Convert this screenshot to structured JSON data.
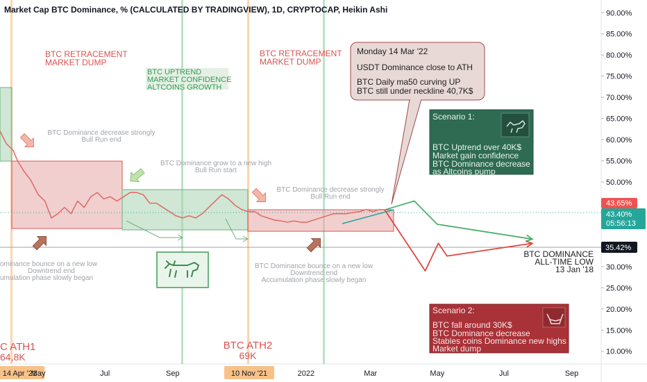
{
  "header": {
    "title": "Market Cap BTC Dominance, % (CALCULATED BY TRADINGVIEW), 1D, CRYPTOCAP, Heikin Ashi"
  },
  "colors": {
    "candle_up": "#26a69a",
    "candle_down": "#ef5350",
    "box_red_fill": "#e8a8a8",
    "box_green_fill": "#a8d4b0",
    "vline_orange": "#f5b26b",
    "vline_green": "#8fd19e",
    "scenario1_bg": "#2e6b52",
    "scenario2_bg": "#a83238",
    "red_text": "#d9534f",
    "green_text": "#2e9e4f"
  },
  "price_scale": {
    "current_price_label": "43.65%",
    "current_value_label": "43.40%",
    "countdown_label": "05:56:13",
    "ath_low_label": "35.42%"
  },
  "chart_data": {
    "type": "line",
    "title": "Market Cap BTC Dominance, % (CALCULATED BY TRADINGVIEW), 1D, CRYPTOCAP, Heikin Ashi",
    "ylim": [
      7,
      93
    ],
    "y_ticks": [
      "90.00%",
      "85.00%",
      "80.00%",
      "75.00%",
      "70.00%",
      "65.00%",
      "60.00%",
      "55.00%",
      "50.00%",
      "45.00%",
      "40.00%",
      "35.00%",
      "30.00%",
      "25.00%",
      "20.00%",
      "15.00%",
      "10.00%"
    ],
    "y_tick_values": [
      90,
      85,
      80,
      75,
      70,
      65,
      60,
      55,
      50,
      45,
      40,
      35,
      30,
      25,
      20,
      15,
      10
    ],
    "x_ticks": [
      {
        "label": "14 Apr '21",
        "date": "2021-04-14",
        "highlight": true
      },
      {
        "label": "May",
        "date": "2021-05-01",
        "highlight": false
      },
      {
        "label": "Jul",
        "date": "2021-07-01",
        "highlight": false
      },
      {
        "label": "Sep",
        "date": "2021-09-01",
        "highlight": false
      },
      {
        "label": "10 Nov '21",
        "date": "2021-11-10",
        "highlight": true
      },
      {
        "label": "2022",
        "date": "2022-01-01",
        "highlight": false
      },
      {
        "label": "Mar",
        "date": "2022-03-01",
        "highlight": false
      },
      {
        "label": "May",
        "date": "2022-05-01",
        "highlight": false
      },
      {
        "label": "Jul",
        "date": "2022-07-01",
        "highlight": false
      },
      {
        "label": "Sep",
        "date": "2022-09-01",
        "highlight": false
      }
    ],
    "series": [
      {
        "values": [
          [
            "2021-03-27",
            62.0
          ],
          [
            "2021-04-02",
            59.0
          ],
          [
            "2021-04-08",
            57.5
          ],
          [
            "2021-04-12",
            55.0
          ],
          [
            "2021-04-18",
            52.5
          ],
          [
            "2021-04-24",
            50.5
          ],
          [
            "2021-05-01",
            47.0
          ],
          [
            "2021-05-07",
            45.5
          ],
          [
            "2021-05-13",
            41.5
          ],
          [
            "2021-05-19",
            42.5
          ],
          [
            "2021-05-25",
            44.0
          ],
          [
            "2021-05-31",
            42.5
          ],
          [
            "2021-06-06",
            45.5
          ],
          [
            "2021-06-12",
            44.0
          ],
          [
            "2021-06-18",
            46.5
          ],
          [
            "2021-06-24",
            47.5
          ],
          [
            "2021-06-30",
            46.0
          ],
          [
            "2021-07-06",
            46.5
          ],
          [
            "2021-07-12",
            45.5
          ],
          [
            "2021-07-18",
            46.5
          ],
          [
            "2021-07-24",
            47.5
          ],
          [
            "2021-07-30",
            47.5
          ],
          [
            "2021-08-05",
            47.0
          ],
          [
            "2021-08-11",
            45.0
          ],
          [
            "2021-08-17",
            45.0
          ],
          [
            "2021-08-23",
            44.0
          ],
          [
            "2021-08-29",
            43.0
          ],
          [
            "2021-09-04",
            42.0
          ],
          [
            "2021-09-10",
            41.5
          ],
          [
            "2021-09-16",
            42.0
          ],
          [
            "2021-09-22",
            41.5
          ],
          [
            "2021-09-28",
            42.5
          ],
          [
            "2021-10-04",
            44.0
          ],
          [
            "2021-10-10",
            45.5
          ],
          [
            "2021-10-16",
            47.0
          ],
          [
            "2021-10-22",
            46.0
          ],
          [
            "2021-10-28",
            44.5
          ],
          [
            "2021-11-03",
            43.5
          ],
          [
            "2021-11-09",
            43.0
          ],
          [
            "2021-11-15",
            43.0
          ],
          [
            "2021-11-21",
            42.0
          ],
          [
            "2021-11-27",
            41.5
          ],
          [
            "2021-12-03",
            41.0
          ],
          [
            "2021-12-09",
            40.8
          ],
          [
            "2021-12-15",
            40.5
          ],
          [
            "2021-12-21",
            40.8
          ],
          [
            "2021-12-27",
            40.5
          ],
          [
            "2022-01-02",
            40.5
          ],
          [
            "2022-01-08",
            41.0
          ],
          [
            "2022-01-14",
            41.5
          ],
          [
            "2022-01-20",
            42.0
          ],
          [
            "2022-01-26",
            42.5
          ],
          [
            "2022-02-01",
            42.5
          ],
          [
            "2022-02-07",
            42.5
          ],
          [
            "2022-02-13",
            42.8
          ],
          [
            "2022-02-19",
            43.0
          ],
          [
            "2022-02-25",
            43.5
          ],
          [
            "2022-03-03",
            43.0
          ],
          [
            "2022-03-09",
            43.5
          ],
          [
            "2022-03-14",
            43.4
          ]
        ]
      },
      {
        "values": [
          [
            "2022-03-14",
            43.4
          ],
          [
            "2022-04-10",
            45.5
          ],
          [
            "2022-05-01",
            40.0
          ],
          [
            "2022-07-27",
            36.5
          ]
        ]
      },
      {
        "values": [
          [
            "2022-03-14",
            43.4
          ],
          [
            "2022-04-20",
            29.0
          ],
          [
            "2022-05-02",
            35.5
          ],
          [
            "2022-05-10",
            32.5
          ],
          [
            "2022-07-27",
            35.5
          ]
        ]
      }
    ],
    "annotations": {
      "retracement_1": {
        "line1": "BTC RETRACEMENT",
        "line2": "MARKET DUMP"
      },
      "retracement_2": {
        "line1": "BTC RETRACEMENT",
        "line2": "MARKET DUMP"
      },
      "uptrend": {
        "line1": "BTC UPTREND",
        "line2": "MARKET CONFIDENCE",
        "line3": "ALTCOINS GROWTH"
      },
      "note_decrease_1": {
        "line1": "BTC Dominance decrease strongly",
        "line2": "Bull Run end"
      },
      "note_grow": {
        "line1": "BTC Dominance grow to a new high",
        "line2": "Bull Run start"
      },
      "note_decrease_2": {
        "line1": "BTC Dominance decrease strongly",
        "line2": "Bull Run end"
      },
      "note_bounce_1": {
        "line1": "ominance bounce on a new low",
        "line2": "Downtrend end",
        "line3": "umulation phase slowly began"
      },
      "note_bounce_2": {
        "line1": "BTC Dominance bounce on a new low",
        "line2": "Downtrend end",
        "line3": "Accumulation phase slowly began"
      },
      "ath_1": {
        "line1": "C ATH1",
        "line2": "64,8K"
      },
      "ath_2": {
        "line1": "BTC ATH2",
        "line2": "69K"
      },
      "all_time_low": {
        "line1": "BTC DOMINANCE",
        "line2": "ALL-TIME LOW",
        "line3": "13 Jan '18"
      }
    },
    "callout": {
      "line1": "Monday 14 Mar '22",
      "line2": "USDT Dominance close to ATH",
      "line3": "BTC Daily ma50 curving UP",
      "line4": "BTC still under neckline 40,7K$"
    },
    "scenario1": {
      "heading": "Scenario 1:",
      "line1": "BTC Uptrend over 40K$",
      "line2": "Market gain confidence",
      "line3": "BTC Dominance decrease",
      "line4": "as Altcoins pump"
    },
    "scenario2": {
      "heading": "Scenario 2:",
      "line1": "BTC fall around 30K$",
      "line2": "BTC Dominance decrease",
      "line3": "Stables coins Dominance new highs",
      "line4": "Market dump"
    }
  }
}
